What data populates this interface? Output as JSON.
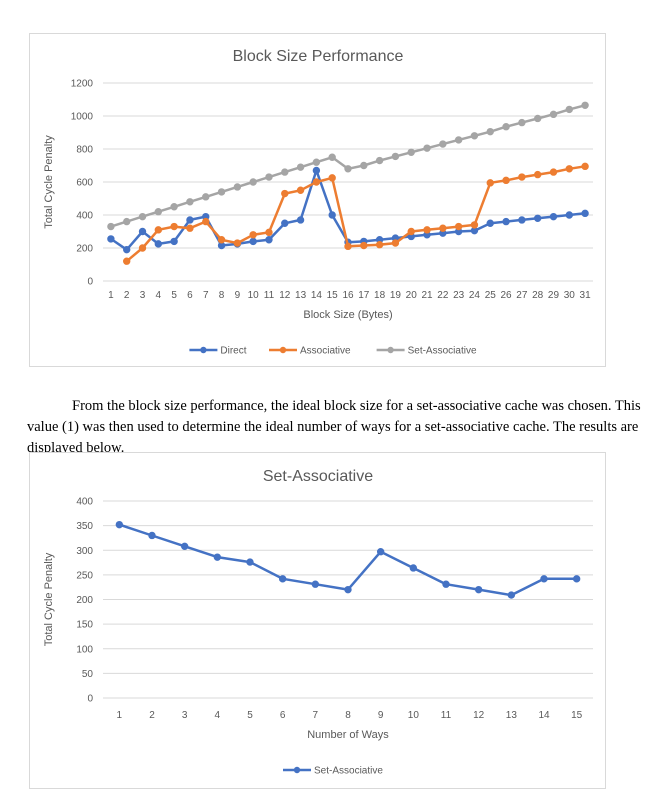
{
  "paragraph": "From the block size performance, the ideal block size for a set-associative cache was chosen. This value (1) was then used to determine the ideal number of ways for a set-associative cache. The results are displayed below.",
  "colors": {
    "direct": "#4472C4",
    "associative": "#ED7D31",
    "set_associative": "#A5A5A5",
    "grid": "#d9d9d9",
    "text": "#595959"
  },
  "chart_data": [
    {
      "type": "line",
      "title": "Block Size Performance",
      "xlabel": "Block Size (Bytes)",
      "ylabel": "Total Cycle Penalty",
      "ylim": [
        0,
        1200
      ],
      "yticks": [
        0,
        200,
        400,
        600,
        800,
        1000,
        1200
      ],
      "grid": true,
      "legend": "bottom",
      "x": [
        1,
        2,
        3,
        4,
        5,
        6,
        7,
        8,
        9,
        10,
        11,
        12,
        13,
        14,
        15,
        16,
        17,
        18,
        19,
        20,
        21,
        22,
        23,
        24,
        25,
        26,
        27,
        28,
        29,
        30,
        31
      ],
      "series": [
        {
          "name": "Direct",
          "color": "#4472C4",
          "values": [
            255,
            190,
            300,
            225,
            240,
            370,
            390,
            215,
            225,
            240,
            250,
            350,
            370,
            670,
            400,
            235,
            240,
            250,
            260,
            270,
            280,
            290,
            300,
            305,
            350,
            360,
            370,
            380,
            390,
            400,
            410
          ]
        },
        {
          "name": "Associative",
          "color": "#ED7D31",
          "values": [
            null,
            120,
            200,
            310,
            330,
            320,
            360,
            250,
            230,
            280,
            295,
            530,
            550,
            600,
            625,
            210,
            215,
            220,
            230,
            300,
            310,
            320,
            330,
            340,
            595,
            610,
            630,
            645,
            660,
            680,
            695
          ]
        },
        {
          "name": "Set-Associative",
          "color": "#A5A5A5",
          "values": [
            330,
            360,
            390,
            420,
            450,
            480,
            510,
            540,
            570,
            600,
            630,
            660,
            690,
            720,
            750,
            680,
            700,
            730,
            755,
            780,
            805,
            830,
            855,
            880,
            905,
            935,
            960,
            985,
            1010,
            1040,
            1065
          ]
        }
      ]
    },
    {
      "type": "line",
      "title": "Set-Associative",
      "xlabel": "Number of Ways",
      "ylabel": "Total Cycle Penalty",
      "ylim": [
        0,
        400
      ],
      "yticks": [
        0,
        50,
        100,
        150,
        200,
        250,
        300,
        350,
        400
      ],
      "grid": true,
      "legend": "bottom",
      "x": [
        1,
        2,
        3,
        4,
        5,
        6,
        7,
        8,
        9,
        10,
        11,
        12,
        13,
        14,
        15
      ],
      "series": [
        {
          "name": "Set-Associative",
          "color": "#4472C4",
          "values": [
            352,
            330,
            308,
            286,
            276,
            242,
            231,
            220,
            297,
            264,
            231,
            220,
            209,
            242,
            242
          ]
        }
      ]
    }
  ]
}
